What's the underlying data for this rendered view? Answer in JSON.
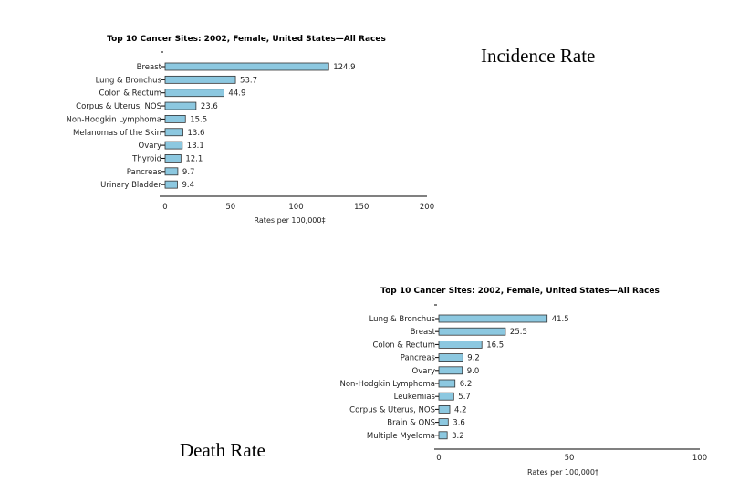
{
  "captions": {
    "incidence": "Incidence Rate",
    "death": "Death Rate"
  },
  "chart_data": [
    {
      "type": "bar",
      "orientation": "horizontal",
      "title": "Top 10 Cancer Sites: 2002, Female, United States—All Races",
      "xlabel": "Rates per 100,000‡",
      "xlim": [
        0,
        200
      ],
      "xticks": [
        0,
        50,
        100,
        150,
        200
      ],
      "bar_color": "#8cc8e0",
      "categories": [
        "Breast",
        "Lung & Bronchus",
        "Colon & Rectum",
        "Corpus & Uterus, NOS",
        "Non-Hodgkin Lymphoma",
        "Melanomas of the Skin",
        "Ovary",
        "Thyroid",
        "Pancreas",
        "Urinary Bladder"
      ],
      "values": [
        124.9,
        53.7,
        44.9,
        23.6,
        15.5,
        13.6,
        13.1,
        12.1,
        9.7,
        9.4
      ],
      "labels": [
        "124.9",
        "53.7",
        "44.9",
        "23.6",
        "15.5",
        "13.6",
        "13.1",
        "12.1",
        "9.7",
        "9.4"
      ]
    },
    {
      "type": "bar",
      "orientation": "horizontal",
      "title": "Top 10 Cancer Sites: 2002, Female, United States—All Races",
      "xlabel": "Rates per 100,000†",
      "xlim": [
        0,
        100
      ],
      "xticks": [
        0,
        50,
        100
      ],
      "bar_color": "#8cc8e0",
      "categories": [
        "Lung & Bronchus",
        "Breast",
        "Colon & Rectum",
        "Pancreas",
        "Ovary",
        "Non-Hodgkin Lymphoma",
        "Leukemias",
        "Corpus & Uterus, NOS",
        "Brain & ONS",
        "Multiple Myeloma"
      ],
      "values": [
        41.5,
        25.5,
        16.5,
        9.2,
        9.0,
        6.2,
        5.7,
        4.2,
        3.6,
        3.2
      ],
      "labels": [
        "41.5",
        "25.5",
        "16.5",
        "9.2",
        "9.0",
        "6.2",
        "5.7",
        "4.2",
        "3.6",
        "3.2"
      ]
    }
  ]
}
